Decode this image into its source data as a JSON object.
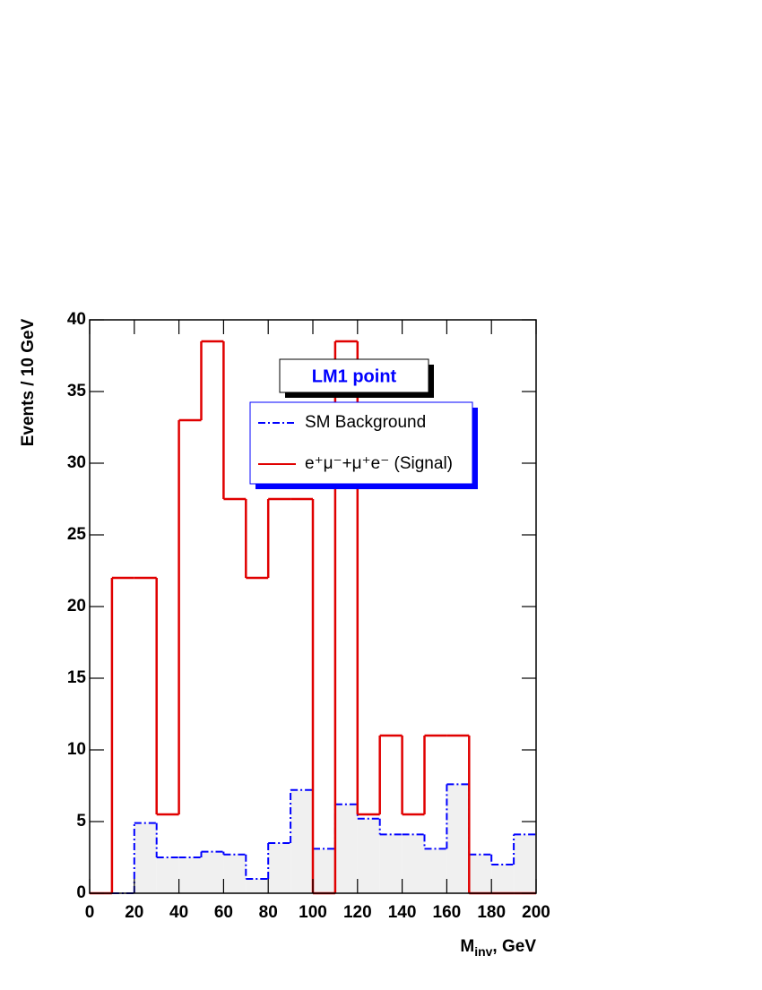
{
  "chart_data": {
    "type": "histogram",
    "ylabel": "Events / 10 GeV",
    "xlabel": [
      "M",
      "inv",
      ", GeV"
    ],
    "annotation": "LM1 point",
    "bins": [
      0,
      10,
      20,
      30,
      40,
      50,
      60,
      70,
      80,
      90,
      100,
      110,
      120,
      130,
      140,
      150,
      160,
      170,
      180,
      190,
      200
    ],
    "series": [
      {
        "name": "SM Background",
        "color": "#0000ff",
        "fill": "#f0f0f0",
        "values": [
          0,
          0,
          4.9,
          2.5,
          2.5,
          2.9,
          2.7,
          1.0,
          3.5,
          7.2,
          3.1,
          6.2,
          5.2,
          4.1,
          4.1,
          3.1,
          7.6,
          2.7,
          2.0,
          4.1
        ]
      },
      {
        "name": "e⁺μ⁻+μ⁺e⁻ (Signal)",
        "color": "#e00000",
        "values": [
          0,
          22,
          22,
          5.5,
          33,
          38.5,
          27.5,
          22,
          27.5,
          27.5,
          0,
          38.5,
          5.5,
          11,
          5.5,
          11,
          11,
          0,
          0,
          0
        ]
      }
    ],
    "xlim": [
      0,
      200
    ],
    "ylim": [
      0,
      40
    ],
    "xticks": [
      0,
      20,
      40,
      60,
      80,
      100,
      120,
      140,
      160,
      180,
      200
    ],
    "yticks": [
      0,
      5,
      10,
      15,
      20,
      25,
      30,
      35,
      40
    ]
  }
}
